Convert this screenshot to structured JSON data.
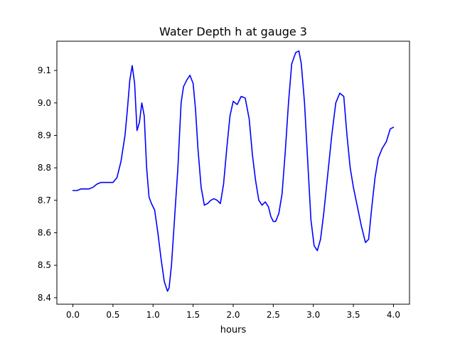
{
  "chart_data": {
    "type": "line",
    "title": "Water Depth h at gauge 3",
    "xlabel": "hours",
    "ylabel": "",
    "xlim": [
      -0.2,
      4.2
    ],
    "ylim": [
      8.38,
      9.19
    ],
    "x_ticks": [
      0.0,
      0.5,
      1.0,
      1.5,
      2.0,
      2.5,
      3.0,
      3.5,
      4.0
    ],
    "x_tick_labels": [
      "0.0",
      "0.5",
      "1.0",
      "1.5",
      "2.0",
      "2.5",
      "3.0",
      "3.5",
      "4.0"
    ],
    "y_ticks": [
      8.4,
      8.5,
      8.6,
      8.7,
      8.8,
      8.9,
      9.0,
      9.1
    ],
    "y_tick_labels": [
      "8.4",
      "8.5",
      "8.6",
      "8.7",
      "8.8",
      "8.9",
      "9.0",
      "9.1"
    ],
    "grid": false,
    "legend": "none",
    "series": [
      {
        "color": "#0000ff",
        "x": [
          0.0,
          0.05,
          0.1,
          0.15,
          0.2,
          0.25,
          0.3,
          0.35,
          0.4,
          0.45,
          0.5,
          0.55,
          0.6,
          0.65,
          0.68,
          0.71,
          0.74,
          0.77,
          0.8,
          0.83,
          0.86,
          0.89,
          0.92,
          0.95,
          0.98,
          1.02,
          1.06,
          1.1,
          1.14,
          1.18,
          1.2,
          1.23,
          1.27,
          1.31,
          1.35,
          1.38,
          1.42,
          1.46,
          1.5,
          1.53,
          1.56,
          1.6,
          1.64,
          1.68,
          1.72,
          1.76,
          1.8,
          1.84,
          1.88,
          1.92,
          1.96,
          2.0,
          2.05,
          2.1,
          2.15,
          2.2,
          2.24,
          2.28,
          2.32,
          2.36,
          2.4,
          2.44,
          2.47,
          2.5,
          2.53,
          2.57,
          2.61,
          2.65,
          2.69,
          2.73,
          2.78,
          2.82,
          2.85,
          2.89,
          2.93,
          2.97,
          3.01,
          3.05,
          3.09,
          3.13,
          3.18,
          3.23,
          3.28,
          3.33,
          3.38,
          3.42,
          3.46,
          3.5,
          3.55,
          3.6,
          3.65,
          3.69,
          3.73,
          3.77,
          3.81,
          3.86,
          3.91,
          3.96,
          4.0
        ],
        "y": [
          8.73,
          8.73,
          8.735,
          8.735,
          8.735,
          8.74,
          8.75,
          8.755,
          8.755,
          8.755,
          8.755,
          8.77,
          8.82,
          8.9,
          8.98,
          9.07,
          9.115,
          9.06,
          8.915,
          8.94,
          9.0,
          8.96,
          8.8,
          8.71,
          8.69,
          8.67,
          8.6,
          8.52,
          8.45,
          8.42,
          8.43,
          8.5,
          8.65,
          8.8,
          9.0,
          9.05,
          9.07,
          9.085,
          9.06,
          8.98,
          8.86,
          8.74,
          8.685,
          8.69,
          8.7,
          8.705,
          8.7,
          8.69,
          8.75,
          8.86,
          8.96,
          9.005,
          8.995,
          9.02,
          9.015,
          8.95,
          8.84,
          8.76,
          8.7,
          8.685,
          8.695,
          8.68,
          8.65,
          8.635,
          8.635,
          8.66,
          8.72,
          8.85,
          9.0,
          9.12,
          9.155,
          9.16,
          9.12,
          9.0,
          8.82,
          8.64,
          8.56,
          8.545,
          8.58,
          8.66,
          8.78,
          8.9,
          9.0,
          9.03,
          9.02,
          8.9,
          8.8,
          8.74,
          8.68,
          8.62,
          8.57,
          8.58,
          8.68,
          8.77,
          8.83,
          8.86,
          8.88,
          8.92,
          8.925
        ]
      }
    ]
  }
}
